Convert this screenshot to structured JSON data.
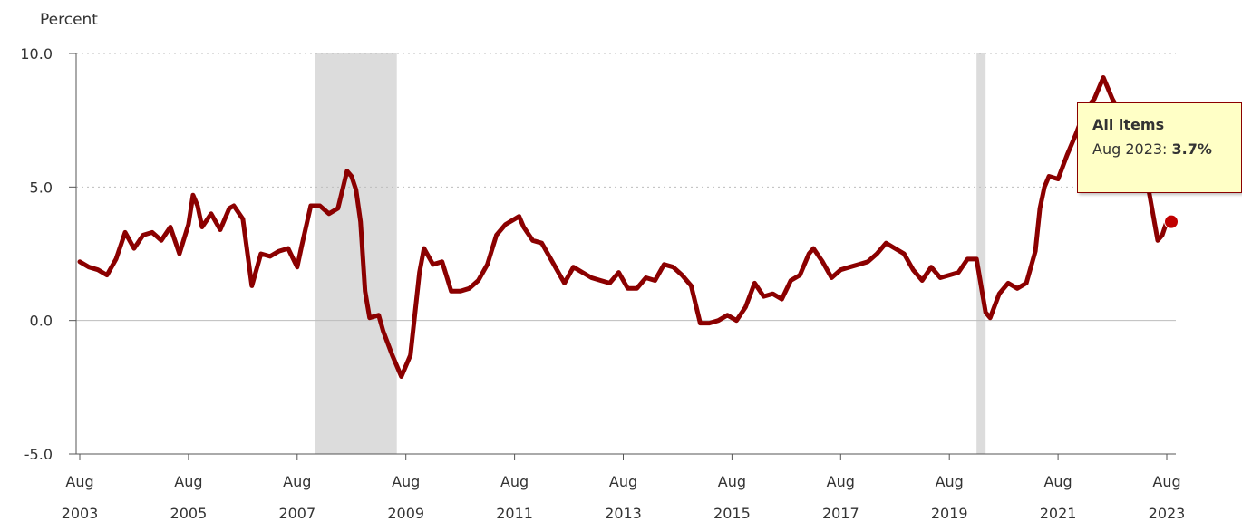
{
  "chart_data": {
    "type": "line",
    "ylabel": "Percent",
    "ylim": [
      -5,
      10
    ],
    "yticks": [
      "10.0",
      "5.0",
      "0.0",
      "-5.0"
    ],
    "ytick_values": [
      10,
      5,
      0,
      -5
    ],
    "grid": "horizontal dotted at 5.0 and 10.0, solid at 0.0",
    "xtick_labels": [
      [
        "Aug",
        "2003"
      ],
      [
        "Aug",
        "2005"
      ],
      [
        "Aug",
        "2007"
      ],
      [
        "Aug",
        "2009"
      ],
      [
        "Aug",
        "2011"
      ],
      [
        "Aug",
        "2013"
      ],
      [
        "Aug",
        "2015"
      ],
      [
        "Aug",
        "2017"
      ],
      [
        "Aug",
        "2019"
      ],
      [
        "Aug",
        "2021"
      ],
      [
        "Aug",
        "2023"
      ]
    ],
    "x_start": "2003-08",
    "x_end": "2023-08",
    "recessions": [
      [
        "2007-12",
        "2009-06"
      ],
      [
        "2020-02",
        "2020-04"
      ]
    ],
    "series": [
      {
        "line_color": "#8b0000",
        "points": [
          [
            "2003-08",
            2.2
          ],
          [
            "2003-10",
            2.0
          ],
          [
            "2003-12",
            1.9
          ],
          [
            "2004-02",
            1.7
          ],
          [
            "2004-04",
            2.3
          ],
          [
            "2004-06",
            3.3
          ],
          [
            "2004-08",
            2.7
          ],
          [
            "2004-10",
            3.2
          ],
          [
            "2004-12",
            3.3
          ],
          [
            "2005-02",
            3.0
          ],
          [
            "2005-04",
            3.5
          ],
          [
            "2005-06",
            2.5
          ],
          [
            "2005-08",
            3.6
          ],
          [
            "2005-09",
            4.7
          ],
          [
            "2005-10",
            4.3
          ],
          [
            "2005-11",
            3.5
          ],
          [
            "2006-01",
            4.0
          ],
          [
            "2006-03",
            3.4
          ],
          [
            "2006-05",
            4.2
          ],
          [
            "2006-06",
            4.3
          ],
          [
            "2006-08",
            3.8
          ],
          [
            "2006-10",
            1.3
          ],
          [
            "2006-12",
            2.5
          ],
          [
            "2007-02",
            2.4
          ],
          [
            "2007-04",
            2.6
          ],
          [
            "2007-06",
            2.7
          ],
          [
            "2007-08",
            2.0
          ],
          [
            "2007-09",
            2.8
          ],
          [
            "2007-11",
            4.3
          ],
          [
            "2008-01",
            4.3
          ],
          [
            "2008-03",
            4.0
          ],
          [
            "2008-05",
            4.2
          ],
          [
            "2008-07",
            5.6
          ],
          [
            "2008-08",
            5.4
          ],
          [
            "2008-09",
            4.9
          ],
          [
            "2008-10",
            3.7
          ],
          [
            "2008-11",
            1.1
          ],
          [
            "2008-12",
            0.1
          ],
          [
            "2009-02",
            0.2
          ],
          [
            "2009-03",
            -0.4
          ],
          [
            "2009-05",
            -1.3
          ],
          [
            "2009-07",
            -2.1
          ],
          [
            "2009-09",
            -1.3
          ],
          [
            "2009-11",
            1.8
          ],
          [
            "2009-12",
            2.7
          ],
          [
            "2010-02",
            2.1
          ],
          [
            "2010-04",
            2.2
          ],
          [
            "2010-06",
            1.1
          ],
          [
            "2010-08",
            1.1
          ],
          [
            "2010-10",
            1.2
          ],
          [
            "2010-12",
            1.5
          ],
          [
            "2011-02",
            2.1
          ],
          [
            "2011-04",
            3.2
          ],
          [
            "2011-06",
            3.6
          ],
          [
            "2011-08",
            3.8
          ],
          [
            "2011-09",
            3.9
          ],
          [
            "2011-10",
            3.5
          ],
          [
            "2011-12",
            3.0
          ],
          [
            "2012-02",
            2.9
          ],
          [
            "2012-04",
            2.3
          ],
          [
            "2012-06",
            1.7
          ],
          [
            "2012-07",
            1.4
          ],
          [
            "2012-09",
            2.0
          ],
          [
            "2012-11",
            1.8
          ],
          [
            "2013-01",
            1.6
          ],
          [
            "2013-03",
            1.5
          ],
          [
            "2013-05",
            1.4
          ],
          [
            "2013-07",
            1.8
          ],
          [
            "2013-09",
            1.2
          ],
          [
            "2013-11",
            1.2
          ],
          [
            "2014-01",
            1.6
          ],
          [
            "2014-03",
            1.5
          ],
          [
            "2014-05",
            2.1
          ],
          [
            "2014-07",
            2.0
          ],
          [
            "2014-09",
            1.7
          ],
          [
            "2014-11",
            1.3
          ],
          [
            "2015-01",
            -0.1
          ],
          [
            "2015-03",
            -0.1
          ],
          [
            "2015-05",
            0.0
          ],
          [
            "2015-07",
            0.2
          ],
          [
            "2015-09",
            0.0
          ],
          [
            "2015-11",
            0.5
          ],
          [
            "2016-01",
            1.4
          ],
          [
            "2016-03",
            0.9
          ],
          [
            "2016-05",
            1.0
          ],
          [
            "2016-07",
            0.8
          ],
          [
            "2016-09",
            1.5
          ],
          [
            "2016-11",
            1.7
          ],
          [
            "2017-01",
            2.5
          ],
          [
            "2017-02",
            2.7
          ],
          [
            "2017-04",
            2.2
          ],
          [
            "2017-06",
            1.6
          ],
          [
            "2017-08",
            1.9
          ],
          [
            "2017-10",
            2.0
          ],
          [
            "2017-12",
            2.1
          ],
          [
            "2018-02",
            2.2
          ],
          [
            "2018-04",
            2.5
          ],
          [
            "2018-06",
            2.9
          ],
          [
            "2018-08",
            2.7
          ],
          [
            "2018-10",
            2.5
          ],
          [
            "2018-12",
            1.9
          ],
          [
            "2019-02",
            1.5
          ],
          [
            "2019-04",
            2.0
          ],
          [
            "2019-06",
            1.6
          ],
          [
            "2019-08",
            1.7
          ],
          [
            "2019-10",
            1.8
          ],
          [
            "2019-12",
            2.3
          ],
          [
            "2020-02",
            2.3
          ],
          [
            "2020-04",
            0.3
          ],
          [
            "2020-05",
            0.1
          ],
          [
            "2020-07",
            1.0
          ],
          [
            "2020-09",
            1.4
          ],
          [
            "2020-11",
            1.2
          ],
          [
            "2021-01",
            1.4
          ],
          [
            "2021-03",
            2.6
          ],
          [
            "2021-04",
            4.2
          ],
          [
            "2021-05",
            5.0
          ],
          [
            "2021-06",
            5.4
          ],
          [
            "2021-08",
            5.3
          ],
          [
            "2021-10",
            6.2
          ],
          [
            "2021-12",
            7.0
          ],
          [
            "2022-02",
            7.9
          ],
          [
            "2022-04",
            8.3
          ],
          [
            "2022-06",
            9.1
          ],
          [
            "2022-08",
            8.3
          ],
          [
            "2022-10",
            7.7
          ],
          [
            "2022-12",
            6.5
          ],
          [
            "2023-02",
            6.0
          ],
          [
            "2023-04",
            4.9
          ],
          [
            "2023-06",
            3.0
          ],
          [
            "2023-07",
            3.2
          ],
          [
            "2023-08",
            3.7
          ]
        ]
      }
    ],
    "tooltip": {
      "title": "All items",
      "label": "Aug 2023",
      "value": "3.7%"
    }
  }
}
